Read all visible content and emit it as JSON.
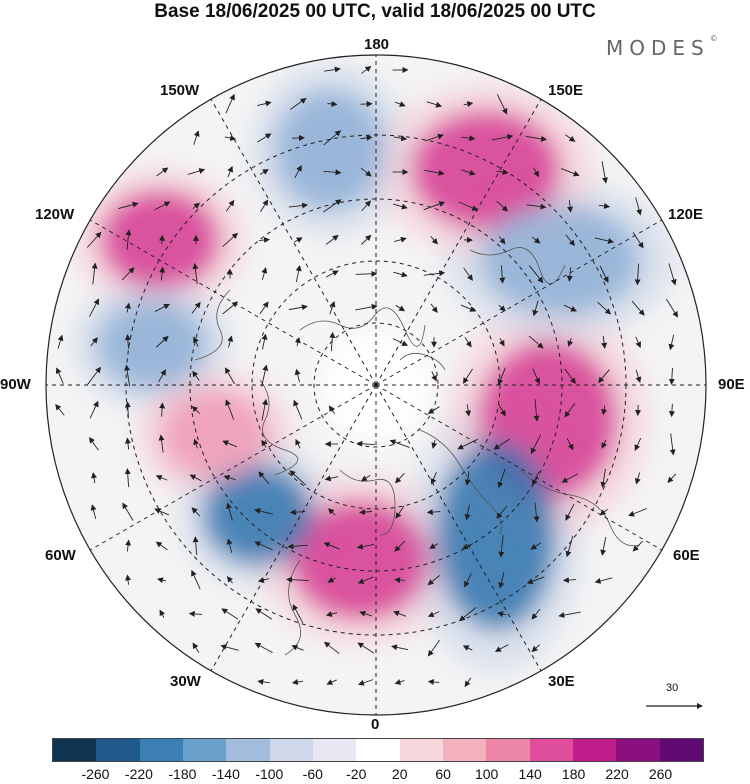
{
  "title": "Base 18/06/2025 00 UTC, valid 18/06/2025 00 UTC",
  "brand": "MODES",
  "brand_mark": "©",
  "longitude_labels": {
    "top": "180",
    "top_right": "150E",
    "top_left": "150W",
    "upper_right": "120E",
    "upper_left": "120W",
    "right": "90E",
    "left": "90W",
    "lower_right": "60E",
    "lower_left": "60W",
    "bottom_right": "30E",
    "bottom_left": "30W",
    "bottom": "0"
  },
  "reference_vector_label": "30",
  "colorbar": {
    "colors": [
      "#10334f",
      "#1f5a8a",
      "#3c7fb4",
      "#6aa0cc",
      "#a2bddb",
      "#cfd7ea",
      "#e8e6f3",
      "#ffffff",
      "#f7d7db",
      "#f2b1bd",
      "#ec86a6",
      "#de4e9b",
      "#bf1d8a",
      "#8c0f7f",
      "#5e0a72"
    ],
    "tick_labels": [
      "-260",
      "-220",
      "-180",
      "-140",
      "-100",
      "-60",
      "-20",
      "20",
      "60",
      "100",
      "140",
      "180",
      "220",
      "260"
    ]
  },
  "map_features": {
    "projection": "north-polar-stereographic",
    "anomaly_centers": [
      {
        "name": "positive-east-siberia",
        "sign": "positive",
        "strength": "strong"
      },
      {
        "name": "negative-east-asia",
        "sign": "negative",
        "strength": "moderate"
      },
      {
        "name": "positive-central-siberia",
        "sign": "positive",
        "strength": "strong"
      },
      {
        "name": "negative-eastern-europe",
        "sign": "negative",
        "strength": "strong"
      },
      {
        "name": "positive-western-europe",
        "sign": "positive",
        "strength": "strong"
      },
      {
        "name": "negative-north-atlantic",
        "sign": "negative",
        "strength": "strong"
      },
      {
        "name": "positive-eastern-canada",
        "sign": "positive",
        "strength": "moderate"
      },
      {
        "name": "negative-central-canada",
        "sign": "negative",
        "strength": "moderate"
      },
      {
        "name": "positive-gulf-of-alaska",
        "sign": "positive",
        "strength": "strong"
      },
      {
        "name": "negative-north-pacific",
        "sign": "negative",
        "strength": "moderate"
      }
    ]
  }
}
